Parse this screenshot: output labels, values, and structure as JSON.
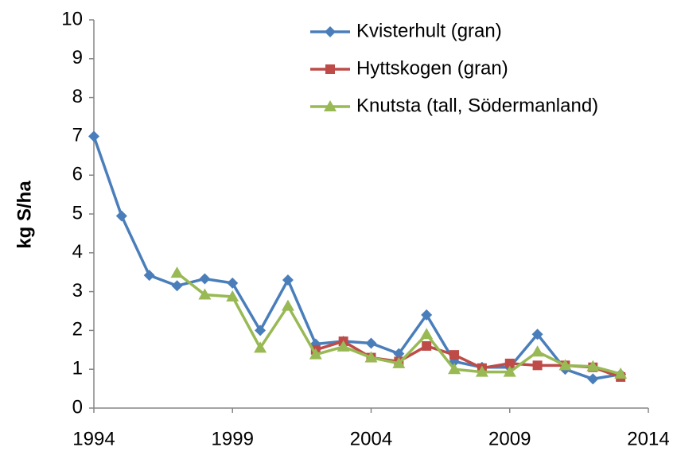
{
  "chart_data": {
    "type": "line",
    "ylabel": "kg S/ha",
    "x": [
      1994,
      1995,
      1996,
      1997,
      1998,
      1999,
      2000,
      2001,
      2002,
      2003,
      2004,
      2005,
      2006,
      2007,
      2008,
      2009,
      2010,
      2011,
      2012,
      2013
    ],
    "series": [
      {
        "name": "Kvisterhult (gran)",
        "color": "#4a7ebb",
        "marker": "diamond",
        "values": [
          7.0,
          4.95,
          3.42,
          3.15,
          3.33,
          3.22,
          2.0,
          3.3,
          1.65,
          1.72,
          1.67,
          1.4,
          2.4,
          1.2,
          1.05,
          1.05,
          1.9,
          1.0,
          0.75,
          0.87
        ]
      },
      {
        "name": "Hyttskogen (gran)",
        "color": "#be4b48",
        "marker": "square",
        "values": [
          null,
          null,
          null,
          null,
          null,
          null,
          null,
          null,
          1.5,
          1.72,
          1.3,
          1.2,
          1.6,
          1.37,
          1.03,
          1.15,
          1.1,
          1.1,
          1.05,
          0.8
        ]
      },
      {
        "name": "Knutsta (tall, Södermanland)",
        "color": "#98b954",
        "marker": "triangle",
        "values": [
          null,
          null,
          null,
          3.48,
          2.92,
          2.87,
          1.55,
          2.63,
          1.38,
          1.58,
          1.3,
          1.15,
          1.9,
          1.0,
          0.93,
          0.93,
          1.45,
          1.1,
          1.07,
          0.88
        ]
      }
    ],
    "xlim": [
      1994,
      2014
    ],
    "xticks": [
      1994,
      1999,
      2004,
      2009,
      2014
    ],
    "ylim": [
      0,
      10
    ],
    "yticks": [
      0,
      1,
      2,
      3,
      4,
      5,
      6,
      7,
      8,
      9,
      10
    ],
    "grid": false,
    "legend": "top-right"
  }
}
